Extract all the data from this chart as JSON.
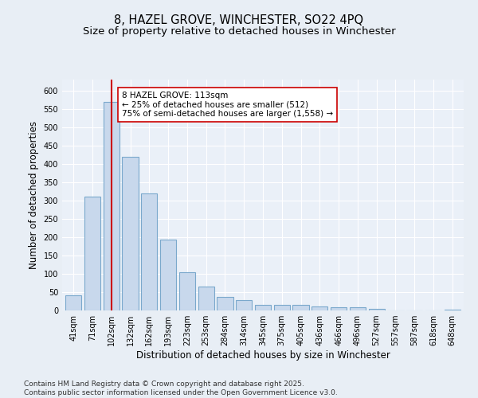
{
  "title1": "8, HAZEL GROVE, WINCHESTER, SO22 4PQ",
  "title2": "Size of property relative to detached houses in Winchester",
  "xlabel": "Distribution of detached houses by size in Winchester",
  "ylabel": "Number of detached properties",
  "categories": [
    "41sqm",
    "71sqm",
    "102sqm",
    "132sqm",
    "162sqm",
    "193sqm",
    "223sqm",
    "253sqm",
    "284sqm",
    "314sqm",
    "345sqm",
    "375sqm",
    "405sqm",
    "436sqm",
    "466sqm",
    "496sqm",
    "527sqm",
    "557sqm",
    "587sqm",
    "618sqm",
    "648sqm"
  ],
  "values": [
    42,
    310,
    570,
    420,
    320,
    193,
    105,
    65,
    38,
    28,
    15,
    15,
    15,
    10,
    8,
    8,
    4,
    0,
    0,
    0,
    2
  ],
  "bar_color": "#c8d8ec",
  "bar_edge_color": "#7aa8cc",
  "bar_linewidth": 0.8,
  "vline_x_index": 2,
  "vline_color": "#cc0000",
  "vline_linewidth": 1.5,
  "annotation_line1": "8 HAZEL GROVE: 113sqm",
  "annotation_line2": "← 25% of detached houses are smaller (512)",
  "annotation_line3": "75% of semi-detached houses are larger (1,558) →",
  "annotation_box_color": "#ffffff",
  "annotation_box_edgecolor": "#cc0000",
  "ylim": [
    0,
    630
  ],
  "yticks": [
    0,
    50,
    100,
    150,
    200,
    250,
    300,
    350,
    400,
    450,
    500,
    550,
    600
  ],
  "footer_text": "Contains HM Land Registry data © Crown copyright and database right 2025.\nContains public sector information licensed under the Open Government Licence v3.0.",
  "bg_color": "#e8eef5",
  "plot_bg_color": "#eaf0f8",
  "grid_color": "#ffffff",
  "title_fontsize": 10.5,
  "subtitle_fontsize": 9.5,
  "tick_fontsize": 7,
  "axis_label_fontsize": 8.5,
  "annotation_fontsize": 7.5,
  "footer_fontsize": 6.5
}
